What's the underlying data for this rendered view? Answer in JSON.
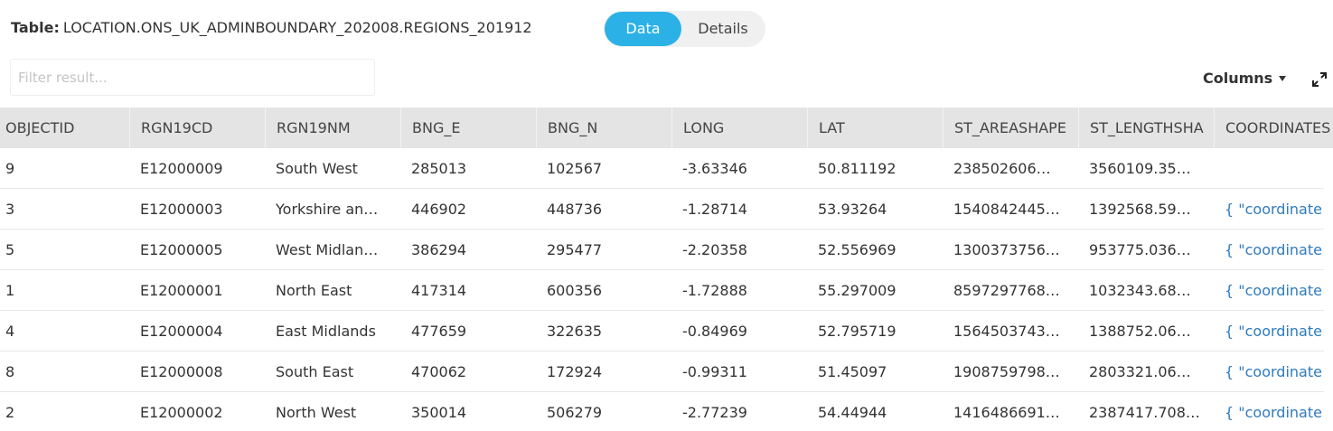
{
  "header": {
    "label": "Table:",
    "title": "LOCATION.ONS_UK_ADMINBOUNDARY_202008.REGIONS_201912",
    "tabs": [
      "Data",
      "Details"
    ]
  },
  "toolbar": {
    "filter_placeholder": "Filter result...",
    "columns_button": "Columns"
  },
  "table": {
    "columns": [
      "OBJECTID",
      "RGN19CD",
      "RGN19NM",
      "BNG_E",
      "BNG_N",
      "LONG",
      "LAT",
      "ST_AREASHAPE",
      "ST_LENGTHSHA",
      "COORDINATES"
    ],
    "rows": [
      [
        "9",
        "E12000009",
        "South West",
        "285013",
        "102567",
        "-3.63346",
        "50.811192",
        "238502606…",
        "3560109.35…",
        null
      ],
      [
        "3",
        "E12000003",
        "Yorkshire an…",
        "446902",
        "448736",
        "-1.28714",
        "53.93264",
        "1540842445…",
        "1392568.59…",
        "{ \"coordinate"
      ],
      [
        "5",
        "E12000005",
        "West Midlan…",
        "386294",
        "295477",
        "-2.20358",
        "52.556969",
        "1300373756…",
        "953775.036…",
        "{ \"coordinate"
      ],
      [
        "1",
        "E12000001",
        "North East",
        "417314",
        "600356",
        "-1.72888",
        "55.297009",
        "8597297768…",
        "1032343.68…",
        "{ \"coordinate"
      ],
      [
        "4",
        "E12000004",
        "East Midlands",
        "477659",
        "322635",
        "-0.84969",
        "52.795719",
        "1564503743…",
        "1388752.06…",
        "{ \"coordinate"
      ],
      [
        "8",
        "E12000008",
        "South East",
        "470062",
        "172924",
        "-0.99311",
        "51.45097",
        "1908759798…",
        "2803321.06…",
        "{ \"coordinate"
      ],
      [
        "2",
        "E12000002",
        "North West",
        "350014",
        "506279",
        "-2.77239",
        "54.44944",
        "1416486691…",
        "2387417.708…",
        "{ \"coordinate"
      ]
    ]
  }
}
